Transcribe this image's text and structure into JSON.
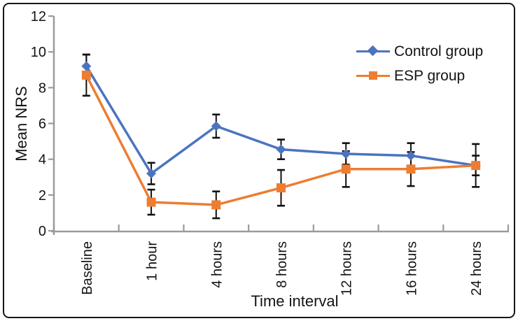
{
  "figure": {
    "background": "#ffffff",
    "border_color": "#161616"
  },
  "axis_style": {
    "axis_color": "#9b9b9b",
    "text_color": "#141414",
    "error_bar_color": "#111111"
  },
  "legend": {
    "position": "top-right",
    "items": [
      {
        "label": "Control group",
        "marker": "diamond",
        "color": "#4b74be"
      },
      {
        "label": "ESP group",
        "marker": "square",
        "color": "#ed7d31"
      }
    ]
  },
  "chart_data": {
    "type": "line",
    "title": "",
    "xlabel": "Time interval",
    "ylabel": "Mean NRS",
    "categories": [
      "Baseline",
      "1 hour",
      "4 hours",
      "8 hours",
      "12 hours",
      "16 hours",
      "24 hours"
    ],
    "ylim": [
      0,
      12
    ],
    "ytick_step": 2,
    "ytick_labels": [
      "0",
      "2",
      "4",
      "6",
      "8",
      "10",
      "12"
    ],
    "grid": false,
    "error_bars": true,
    "series": [
      {
        "name": "Control group",
        "color": "#4b74be",
        "marker": "diamond",
        "values": [
          9.2,
          3.2,
          5.85,
          4.55,
          4.3,
          4.2,
          3.65
        ],
        "errors": [
          0.65,
          0.6,
          0.65,
          0.55,
          0.6,
          0.7,
          0.55
        ]
      },
      {
        "name": "ESP group",
        "color": "#ed7d31",
        "marker": "square",
        "values": [
          8.7,
          1.6,
          1.45,
          2.4,
          3.45,
          3.45,
          3.65
        ],
        "errors": [
          1.15,
          0.7,
          0.75,
          1.0,
          1.0,
          0.95,
          1.2
        ]
      }
    ]
  }
}
